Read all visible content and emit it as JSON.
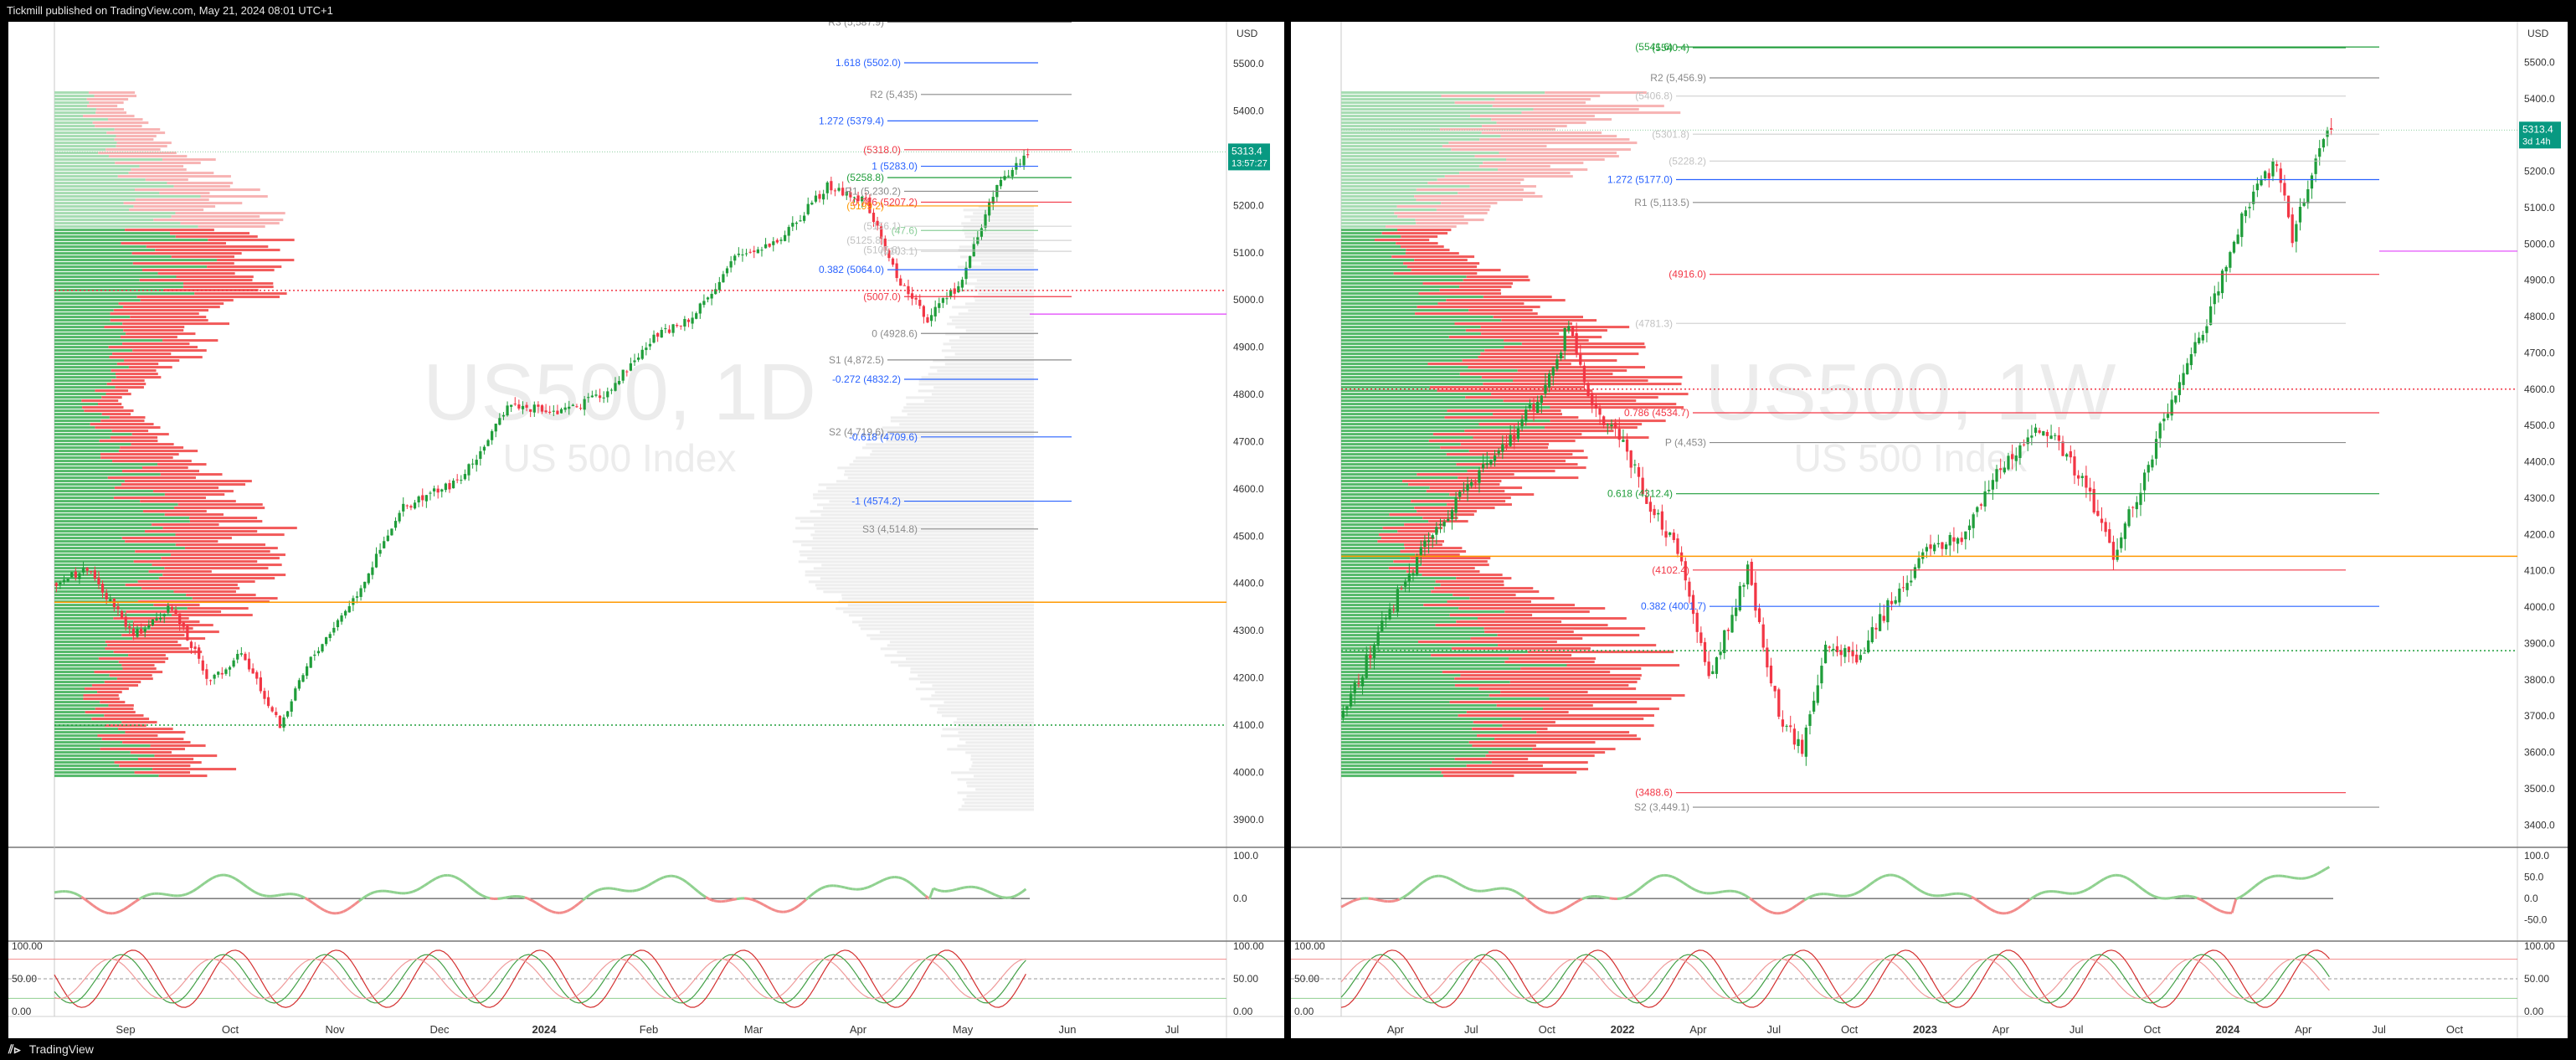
{
  "header": {
    "text": "Tickmill published on TradingView.com, May 21, 2024 08:01 UTC+1"
  },
  "footer": {
    "brand": "TradingView",
    "logo": "tv-logo-icon"
  },
  "colors": {
    "up": "#1f9d3a",
    "down": "#f23645",
    "vp_up": "#55b96a",
    "vp_down": "#f25a5a",
    "fib_blue": "#2962ff",
    "pivot_gray": "#9e9e9e",
    "orange": "#ff9800",
    "magenta": "#e040fb",
    "rsi": "#8fd18f",
    "stoch_red": "#d32f2f",
    "stoch_green": "#43a047",
    "price_badge": "#089981"
  },
  "chart_data": [
    {
      "type": "candlestick",
      "symbol_watermark": "US500, 1D",
      "description_watermark": "US 500 Index",
      "currency": "USD",
      "last_price": "5313.4",
      "countdown": "13:57:27",
      "x_labels": [
        "Sep",
        "Oct",
        "Nov",
        "Dec",
        "2024",
        "Feb",
        "Mar",
        "Apr",
        "May",
        "Jun",
        "Jul"
      ],
      "y_ticks": [
        "5500.0",
        "5400.0",
        "5300.0",
        "5200.0",
        "5100.0",
        "5000.0",
        "4900.0",
        "4800.0",
        "4700.0",
        "4600.0",
        "4500.0",
        "4400.0",
        "4300.0",
        "4200.0",
        "4100.0",
        "4000.0",
        "3900.0"
      ],
      "ylim": [
        3850,
        5580
      ],
      "price_anchors": [
        [
          0,
          4400
        ],
        [
          8,
          4430
        ],
        [
          20,
          4290
        ],
        [
          30,
          4350
        ],
        [
          40,
          4190
        ],
        [
          48,
          4250
        ],
        [
          58,
          4100
        ],
        [
          66,
          4240
        ],
        [
          78,
          4380
        ],
        [
          90,
          4560
        ],
        [
          105,
          4620
        ],
        [
          118,
          4780
        ],
        [
          130,
          4760
        ],
        [
          142,
          4800
        ],
        [
          155,
          4920
        ],
        [
          165,
          4960
        ],
        [
          176,
          5090
        ],
        [
          188,
          5130
        ],
        [
          200,
          5240
        ],
        [
          210,
          5210
        ],
        [
          218,
          5050
        ],
        [
          226,
          4960
        ],
        [
          234,
          5030
        ],
        [
          244,
          5240
        ],
        [
          252,
          5313
        ]
      ],
      "hlines": [
        {
          "label": "R3 (5,587.9)",
          "color": "gray",
          "value": 5588
        },
        {
          "label": "1.618 (5502.0)",
          "color": "blue",
          "value": 5502
        },
        {
          "label": "R2 (5,435)",
          "color": "gray",
          "value": 5435
        },
        {
          "label": "1.272 (5379.4)",
          "color": "blue",
          "value": 5379
        },
        {
          "label": "(5318.0)",
          "color": "red",
          "value": 5318
        },
        {
          "label": "1 (5283.0)",
          "color": "blue",
          "value": 5283
        },
        {
          "label": "(5258.8)",
          "color": "green",
          "value": 5259
        },
        {
          "label": "R1 (5,230.2)",
          "color": "gray",
          "value": 5230
        },
        {
          "label": "0.786 (5207.2)",
          "color": "red",
          "value": 5207
        },
        {
          "label": "(5199.2)",
          "color": "orange",
          "value": 5199
        },
        {
          "label": "(5156.1)",
          "color": "lightgray",
          "value": 5156
        },
        {
          "label": "(47.6)",
          "color": "lightgreen",
          "value": 5147
        },
        {
          "label": "(5125.8)",
          "color": "lightgray",
          "value": 5126
        },
        {
          "label": "(5105.8)",
          "color": "lightgray",
          "value": 5106
        },
        {
          "label": "(5103.1)",
          "color": "lightgray",
          "value": 5103
        },
        {
          "label": "0.382 (5064.0)",
          "color": "blue",
          "value": 5064
        },
        {
          "label": "(5007.0)",
          "color": "red",
          "value": 5007
        },
        {
          "label": "0 (4928.6)",
          "color": "gray",
          "value": 4929
        },
        {
          "label": "S1 (4,872.5)",
          "color": "gray",
          "value": 4873
        },
        {
          "label": "-0.272 (4832.2)",
          "color": "blue",
          "value": 4832
        },
        {
          "label": "-0.618 (4709.6)",
          "color": "blue",
          "value": 4710
        },
        {
          "label": "S2 (4,719.6)",
          "color": "gray",
          "value": 4720
        },
        {
          "label": "-1 (4574.2)",
          "color": "blue",
          "value": 4574
        },
        {
          "label": "S3 (4,514.8)",
          "color": "gray",
          "value": 4515
        }
      ],
      "rsi_ticks": [
        "100.0",
        "0.0"
      ],
      "stoch_ticks": [
        "100.00",
        "50.00",
        "0.00"
      ]
    },
    {
      "type": "candlestick",
      "symbol_watermark": "US500, 1W",
      "description_watermark": "US 500 Index",
      "currency": "USD",
      "last_price": "5313.4",
      "countdown": "3d 14h",
      "x_labels": [
        "Apr",
        "Jul",
        "Oct",
        "2022",
        "Apr",
        "Jul",
        "Oct",
        "2023",
        "Apr",
        "Jul",
        "Oct",
        "2024",
        "Apr",
        "Jul",
        "Oct"
      ],
      "y_ticks": [
        "5500.0",
        "5400.0",
        "5300.0",
        "5200.0",
        "5100.0",
        "5000.0",
        "4900.0",
        "4800.0",
        "4700.0",
        "4600.0",
        "4500.0",
        "4400.0",
        "4300.0",
        "4200.0",
        "4100.0",
        "4000.0",
        "3900.0",
        "3800.0",
        "3700.0",
        "3600.0",
        "3500.0",
        "3400.0"
      ],
      "ylim": [
        3350,
        5600
      ],
      "price_anchors": [
        [
          0,
          3700
        ],
        [
          10,
          3950
        ],
        [
          20,
          4150
        ],
        [
          30,
          4300
        ],
        [
          42,
          4450
        ],
        [
          52,
          4600
        ],
        [
          58,
          4780
        ],
        [
          64,
          4550
        ],
        [
          72,
          4450
        ],
        [
          78,
          4300
        ],
        [
          86,
          4150
        ],
        [
          94,
          3800
        ],
        [
          104,
          4100
        ],
        [
          112,
          3700
        ],
        [
          118,
          3600
        ],
        [
          124,
          3900
        ],
        [
          132,
          3850
        ],
        [
          140,
          4000
        ],
        [
          150,
          4150
        ],
        [
          160,
          4200
        ],
        [
          170,
          4400
        ],
        [
          180,
          4500
        ],
        [
          190,
          4350
        ],
        [
          198,
          4150
        ],
        [
          204,
          4300
        ],
        [
          212,
          4550
        ],
        [
          222,
          4780
        ],
        [
          232,
          5100
        ],
        [
          240,
          5230
        ],
        [
          244,
          5000
        ],
        [
          250,
          5250
        ],
        [
          254,
          5313
        ]
      ],
      "hlines": [
        {
          "label": "(5541.6)",
          "color": "green",
          "value": 5542
        },
        {
          "label": "(5540.4)",
          "color": "green",
          "value": 5540
        },
        {
          "label": "R2 (5,456.9)",
          "color": "gray",
          "value": 5457
        },
        {
          "label": "(5406.8)",
          "color": "lightgray",
          "value": 5407
        },
        {
          "label": "(5301.8)",
          "color": "lightgray",
          "value": 5302
        },
        {
          "label": "(5228.2)",
          "color": "lightgray",
          "value": 5228
        },
        {
          "label": "1.272 (5177.0)",
          "color": "blue",
          "value": 5177
        },
        {
          "label": "R1 (5,113.5)",
          "color": "gray",
          "value": 5114
        },
        {
          "label": "(4916.0)",
          "color": "red",
          "value": 4916
        },
        {
          "label": "(4781.3)",
          "color": "lightgray",
          "value": 4781
        },
        {
          "label": "0.786 (4534.7)",
          "color": "red",
          "value": 4535
        },
        {
          "label": "P (4,453)",
          "color": "gray",
          "value": 4453
        },
        {
          "label": "0.618 (4312.4)",
          "color": "green",
          "value": 4312
        },
        {
          "label": "(4102.4)",
          "color": "red",
          "value": 4102
        },
        {
          "label": "0.382 (4001.7)",
          "color": "blue",
          "value": 4002
        },
        {
          "label": "(3488.6)",
          "color": "red",
          "value": 3489
        },
        {
          "label": "S2 (3,449.1)",
          "color": "gray",
          "value": 3449
        }
      ],
      "rsi_ticks": [
        "100.0",
        "50.0",
        "0.0",
        "-50.0"
      ],
      "stoch_ticks": [
        "100.00",
        "50.00",
        "0.00"
      ]
    }
  ]
}
